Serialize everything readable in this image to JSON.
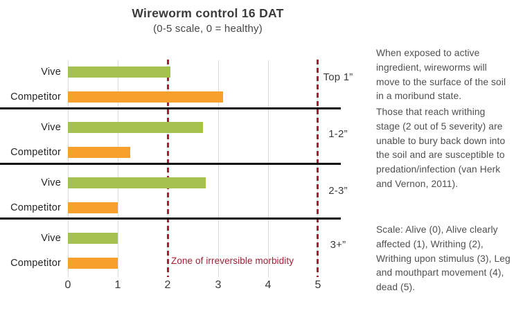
{
  "header": {
    "title": "Wireworm control 16 DAT",
    "subtitle": "(0-5 scale, 0 = healthy)"
  },
  "chart_data": {
    "type": "bar",
    "orientation": "horizontal",
    "title": "Wireworm control 16 DAT",
    "subtitle": "(0-5 scale, 0 = healthy)",
    "xlim": [
      0,
      5
    ],
    "x_ticks": [
      "0",
      "1",
      "2",
      "3",
      "4",
      "5"
    ],
    "gridlines": true,
    "series_names": [
      "Vive",
      "Competitor"
    ],
    "groups": [
      {
        "depth_label": "Top 1”",
        "vive": {
          "label": "Vive",
          "value": 2.05
        },
        "competitor": {
          "label": "Competitor",
          "value": 3.1
        }
      },
      {
        "depth_label": "1-2”",
        "vive": {
          "label": "Vive",
          "value": 2.7
        },
        "competitor": {
          "label": "Competitor",
          "value": 1.25
        }
      },
      {
        "depth_label": "2-3”",
        "vive": {
          "label": "Vive",
          "value": 2.75
        },
        "competitor": {
          "label": "Competitor",
          "value": 1.0
        }
      },
      {
        "depth_label": "3+”",
        "vive": {
          "label": "Vive",
          "value": 1.0
        },
        "competitor": {
          "label": "Competitor",
          "value": 1.0
        }
      }
    ],
    "threshold_lines": [
      2,
      5
    ],
    "zone_label": "Zone of irreversible morbidity",
    "colors": {
      "vive": "#a5c24e",
      "competitor": "#f7a02b",
      "zone": "#a32035"
    }
  },
  "notes": {
    "p1": "When exposed to active ingredient, wireworms will move to the surface of the soil in a moribund state.",
    "p2": "Those that reach writhing stage (2 out of 5 severity) are unable to bury back down into the soil and are susceptible to predation/infection (van Herk and Vernon, 2011).",
    "p3": "Scale: Alive (0), Alive clearly affected (1), Writhing (2), Writhing upon stimulus (3), Leg and mouthpart movement (4), dead (5)."
  }
}
